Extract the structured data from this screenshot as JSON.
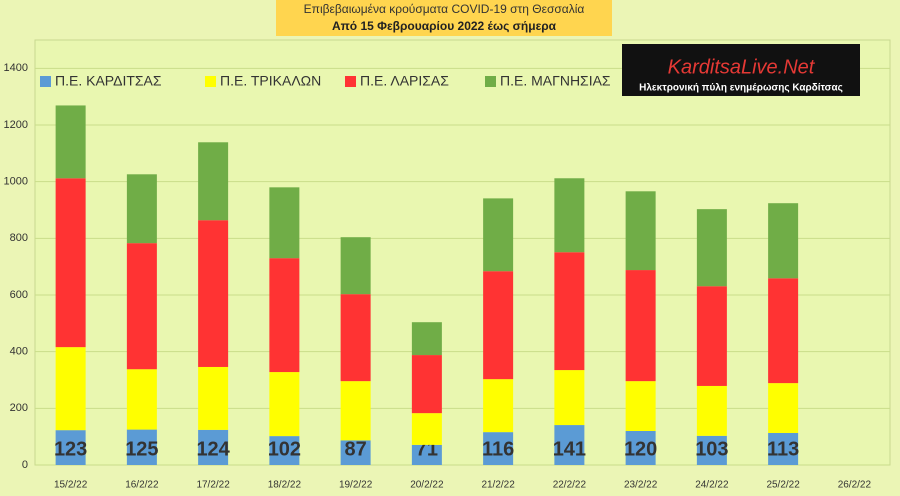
{
  "chart_data": {
    "type": "stacked_bar",
    "title": "Επιβεβαιωμένα κρούσματα COVID-19 στη Θεσσαλία",
    "subtitle": "Από 15 Φεβρουαρίου 2022 έως σήμερα",
    "categories": [
      "15/2/22",
      "16/2/22",
      "17/2/22",
      "18/2/22",
      "19/2/22",
      "20/2/22",
      "21/2/22",
      "22/2/22",
      "23/2/22",
      "24/2/22",
      "25/2/22",
      "26/2/22"
    ],
    "series": [
      {
        "name": "Π.Ε. ΚΑΡΔΙΤΣΑΣ",
        "color": "#5b9bd5",
        "values": [
          123,
          125,
          124,
          102,
          87,
          71,
          116,
          141,
          120,
          103,
          113,
          null
        ],
        "data_labels": true
      },
      {
        "name": "Π.Ε. ΤΡΙΚΑΛΩΝ",
        "color": "#ffff00",
        "values": [
          293,
          213,
          222,
          226,
          209,
          112,
          187,
          194,
          176,
          176,
          176,
          null
        ]
      },
      {
        "name": "Π.Ε. ΛΑΡΙΣΑΣ",
        "color": "#ff3333",
        "values": [
          596,
          445,
          518,
          402,
          307,
          205,
          381,
          416,
          392,
          352,
          370,
          null
        ]
      },
      {
        "name": "Π.Ε. ΜΑΓΝΗΣΙΑΣ",
        "color": "#70ad47",
        "values": [
          257,
          243,
          275,
          250,
          201,
          116,
          257,
          261,
          278,
          272,
          265,
          null
        ]
      }
    ],
    "ylim": [
      0,
      1500
    ],
    "yticks": [
      0,
      200,
      400,
      600,
      800,
      1000,
      1200,
      1400
    ],
    "grid": true,
    "legend": "top-left"
  },
  "logo": {
    "name": "KarditsaLive.Net",
    "tagline": "Ηλεκτρονική πύλη ενημέρωσης Καρδίτσας"
  }
}
